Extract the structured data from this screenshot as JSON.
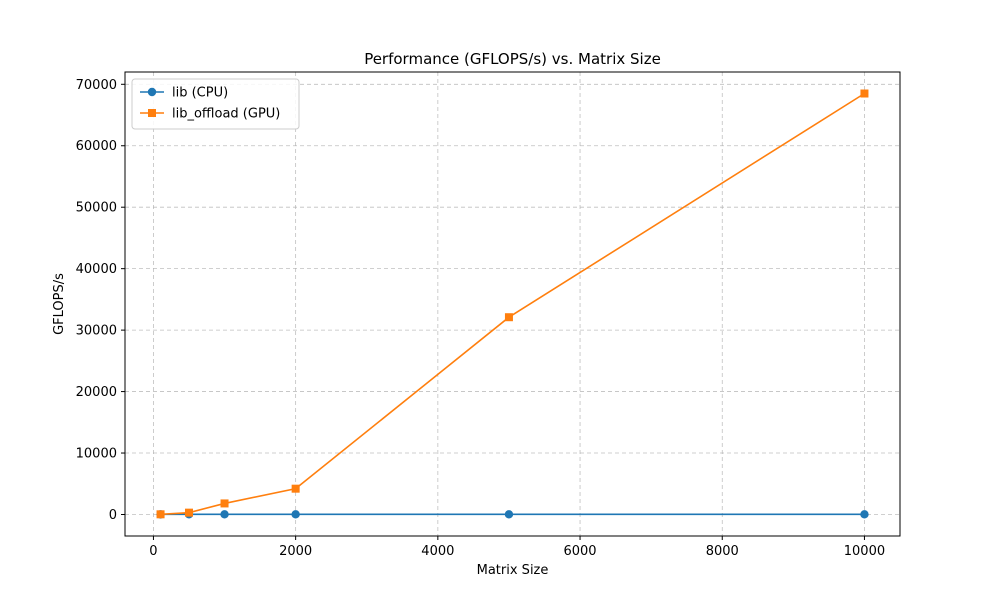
{
  "chart_data": {
    "type": "line",
    "title": "Performance (GFLOPS/s) vs. Matrix Size",
    "xlabel": "Matrix Size",
    "ylabel": "GFLOPS/s",
    "xlim": [
      -400,
      10500
    ],
    "ylim": [
      -3500,
      72000
    ],
    "xticks": [
      0,
      2000,
      4000,
      6000,
      8000,
      10000
    ],
    "yticks": [
      0,
      10000,
      20000,
      30000,
      40000,
      50000,
      60000,
      70000
    ],
    "grid": true,
    "legend_position": "upper-left",
    "series": [
      {
        "name": "lib (CPU)",
        "color": "#1f77b4",
        "marker": "circle",
        "x": [
          100,
          500,
          1000,
          2000,
          5000,
          10000
        ],
        "y": [
          20,
          25,
          25,
          25,
          25,
          25
        ]
      },
      {
        "name": "lib_offload (GPU)",
        "color": "#ff7f0e",
        "marker": "square",
        "x": [
          100,
          500,
          1000,
          2000,
          5000,
          10000
        ],
        "y": [
          30,
          300,
          1800,
          4200,
          32100,
          68500
        ]
      }
    ]
  }
}
